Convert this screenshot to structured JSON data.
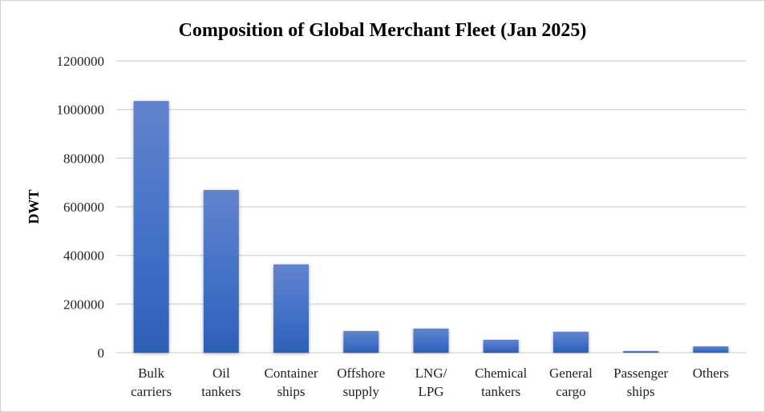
{
  "chart_data": {
    "type": "bar",
    "title": "Composition of  Global Merchant Fleet (Jan 2025)",
    "xlabel": "",
    "ylabel": "DWT",
    "ylim": [
      0,
      1200000
    ],
    "yticks": [
      "0",
      "200000",
      "400000",
      "600000",
      "800000",
      "1000000",
      "1200000"
    ],
    "grid": true,
    "categories": [
      [
        "Bulk",
        "carriers"
      ],
      [
        "Oil",
        "tankers"
      ],
      [
        "Container",
        "ships"
      ],
      [
        "Offshore",
        "supply"
      ],
      [
        "LNG/",
        "LPG"
      ],
      [
        "Chemical",
        "tankers"
      ],
      [
        "General",
        "cargo"
      ],
      [
        "Passenger",
        "ships"
      ],
      [
        "Others"
      ]
    ],
    "values": [
      1035000,
      669000,
      363000,
      89000,
      99000,
      53000,
      86000,
      7000,
      26000
    ],
    "color": "#4472c4"
  }
}
